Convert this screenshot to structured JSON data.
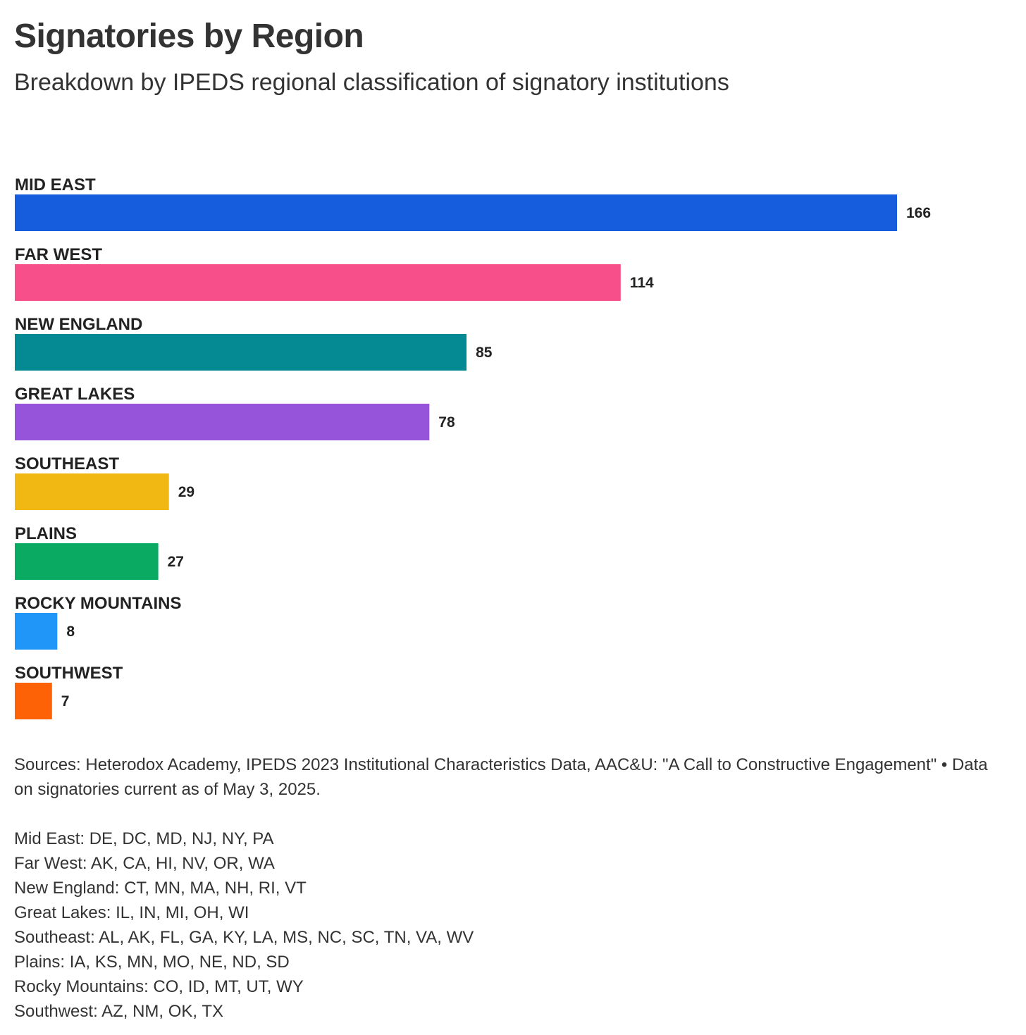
{
  "chart_data": {
    "type": "bar",
    "orientation": "horizontal",
    "title": "Signatories by Region",
    "subtitle": "Breakdown by IPEDS regional classification of signatory institutions",
    "categories": [
      "MID EAST",
      "FAR WEST",
      "NEW ENGLAND",
      "GREAT LAKES",
      "SOUTHEAST",
      "PLAINS",
      "ROCKY MOUNTAINS",
      "SOUTHWEST"
    ],
    "values": [
      166,
      114,
      85,
      78,
      29,
      27,
      8,
      7
    ],
    "colors": [
      "#155ddd",
      "#f64f8a",
      "#058a93",
      "#9654da",
      "#f1b712",
      "#0aaa62",
      "#2196f9",
      "#fd6207"
    ],
    "data_labels": [
      "166",
      "114",
      "85",
      "78",
      "29",
      "27",
      "8",
      "7"
    ],
    "xlim": [
      0,
      166
    ],
    "grid": false,
    "legend": "none",
    "xlabel": "",
    "ylabel": ""
  },
  "notes": {
    "sources": "Sources: Heterodox Academy, IPEDS 2023 Institutional Characteristics Data, AAC&U: \"A Call to Constructive Engagement\" • Data on signatories current as of May 3, 2025.",
    "regions": [
      "Mid East: DE, DC, MD, NJ, NY, PA",
      "Far West: AK, CA, HI, NV, OR, WA",
      "New England: CT, MN, MA, NH, RI, VT",
      "Great Lakes: IL, IN, MI, OH, WI",
      "Southeast: AL, AK, FL, GA, KY, LA, MS, NC, SC, TN, VA, WV",
      "Plains: IA, KS, MN, MO, NE, ND, SD",
      "Rocky Mountains: CO, ID, MT, UT, WY",
      "Southwest: AZ, NM, OK, TX"
    ]
  }
}
